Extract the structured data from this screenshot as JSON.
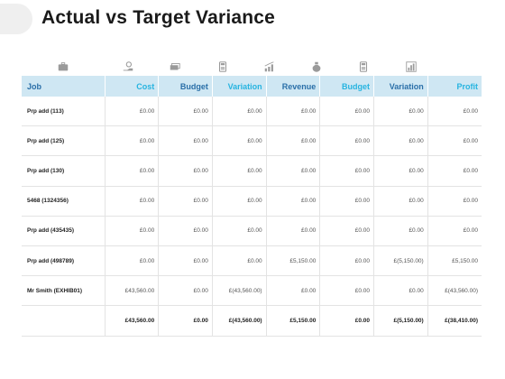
{
  "title": "Actual vs Target Variance",
  "icons": [
    "briefcase-icon",
    "hand-coin-icon",
    "money-stack-icon",
    "calculator-icon",
    "bar-growth-icon",
    "money-bag-icon",
    "calculator-icon",
    "bar-chart-icon"
  ],
  "columns": [
    "Job",
    "Cost",
    "Budget",
    "Variation",
    "Revenue",
    "Budget",
    "Variation",
    "Profit"
  ],
  "rows": [
    {
      "job": "Prp add (113)",
      "values": [
        "£0.00",
        "£0.00",
        "£0.00",
        "£0.00",
        "£0.00",
        "£0.00",
        "£0.00"
      ]
    },
    {
      "job": "Prp add (125)",
      "values": [
        "£0.00",
        "£0.00",
        "£0.00",
        "£0.00",
        "£0.00",
        "£0.00",
        "£0.00"
      ]
    },
    {
      "job": "Prp add (130)",
      "values": [
        "£0.00",
        "£0.00",
        "£0.00",
        "£0.00",
        "£0.00",
        "£0.00",
        "£0.00"
      ]
    },
    {
      "job": "5468 (1324356)",
      "values": [
        "£0.00",
        "£0.00",
        "£0.00",
        "£0.00",
        "£0.00",
        "£0.00",
        "£0.00"
      ]
    },
    {
      "job": "Prp add (435435)",
      "values": [
        "£0.00",
        "£0.00",
        "£0.00",
        "£0.00",
        "£0.00",
        "£0.00",
        "£0.00"
      ]
    },
    {
      "job": "Prp add (498789)",
      "values": [
        "£0.00",
        "£0.00",
        "£0.00",
        "£5,150.00",
        "£0.00",
        "£(5,150.00)",
        "£5,150.00"
      ]
    },
    {
      "job": "Mr Smith (EXHIB01)",
      "values": [
        "£43,560.00",
        "£0.00",
        "£(43,560.00)",
        "£0.00",
        "£0.00",
        "£0.00",
        "£(43,560.00)"
      ]
    }
  ],
  "totals": {
    "job": "",
    "values": [
      "£43,560.00",
      "£0.00",
      "£(43,560.00)",
      "£5,150.00",
      "£0.00",
      "£(5,150.00)",
      "£(38,410.00)"
    ]
  },
  "colors": {
    "header_bg": "#cfe7f3",
    "header_text_dark": "#2a6fa8",
    "header_text_cyan": "#27b4e0",
    "grid": "#e3e3e3"
  }
}
